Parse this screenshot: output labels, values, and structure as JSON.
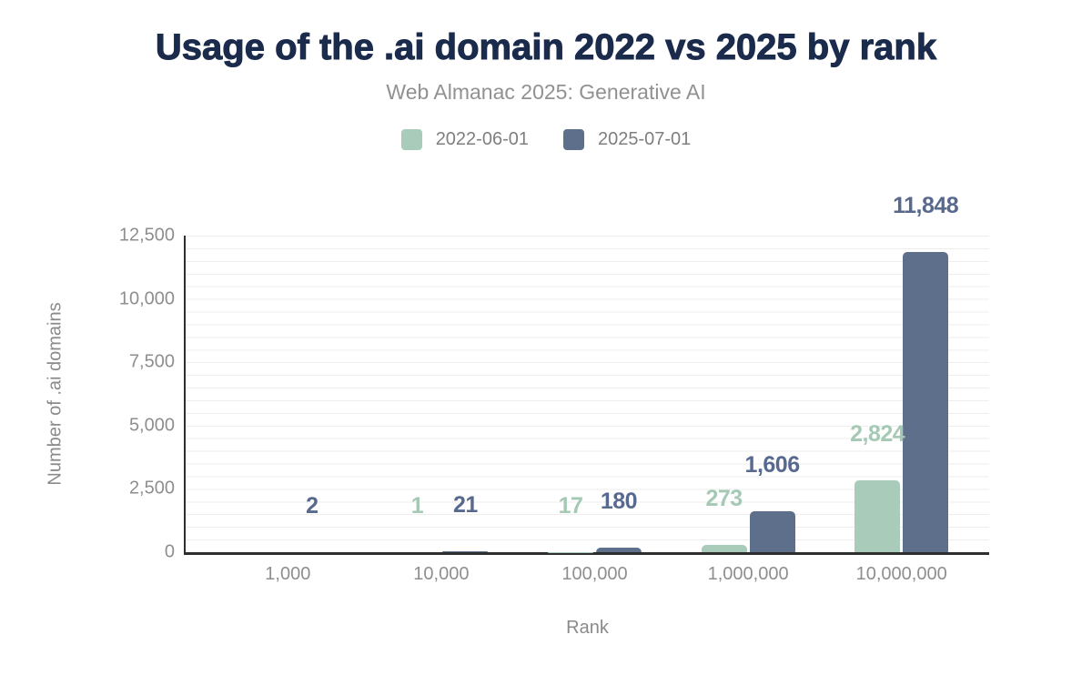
{
  "header": {
    "title": "Usage of the .ai domain 2022 vs 2025 by rank",
    "subtitle": "Web Almanac 2025: Generative AI"
  },
  "chart_data": {
    "type": "bar",
    "title": "Usage of the .ai domain 2022 vs 2025 by rank",
    "subtitle": "Web Almanac 2025: Generative AI",
    "xlabel": "Rank",
    "ylabel": "Number of .ai domains",
    "categories": [
      "1,000",
      "10,000",
      "100,000",
      "1,000,000",
      "10,000,000"
    ],
    "series": [
      {
        "name": "2022-06-01",
        "color": "#a9ccba",
        "label_color": "#a4c9b5",
        "values": [
          null,
          1,
          17,
          273,
          2824
        ],
        "labels": [
          "",
          "1",
          "17",
          "273",
          "2,824"
        ]
      },
      {
        "name": "2025-07-01",
        "color": "#5e6f8b",
        "label_color": "#57698e",
        "values": [
          2,
          21,
          180,
          1606,
          11848
        ],
        "labels": [
          "2",
          "21",
          "180",
          "1,606",
          "11,848"
        ]
      }
    ],
    "y_axis": {
      "min": 0,
      "max": 12500,
      "ticks": [
        {
          "value": 0,
          "label": "0"
        },
        {
          "value": 2500,
          "label": "2,500"
        },
        {
          "value": 5000,
          "label": "5,000"
        },
        {
          "value": 7500,
          "label": "7,500"
        },
        {
          "value": 10000,
          "label": "10,000"
        },
        {
          "value": 12500,
          "label": "12,500"
        }
      ],
      "minor_gridline_step": 500
    },
    "legend_position": "top",
    "grid": true
  },
  "colors": {
    "title": "#1b2b4c",
    "subtitle_text": "#919191",
    "axis_text": "#8e8e8e",
    "axis_line": "#2e2e2e",
    "gridline": "#eeeeee",
    "background": "#ffffff"
  }
}
